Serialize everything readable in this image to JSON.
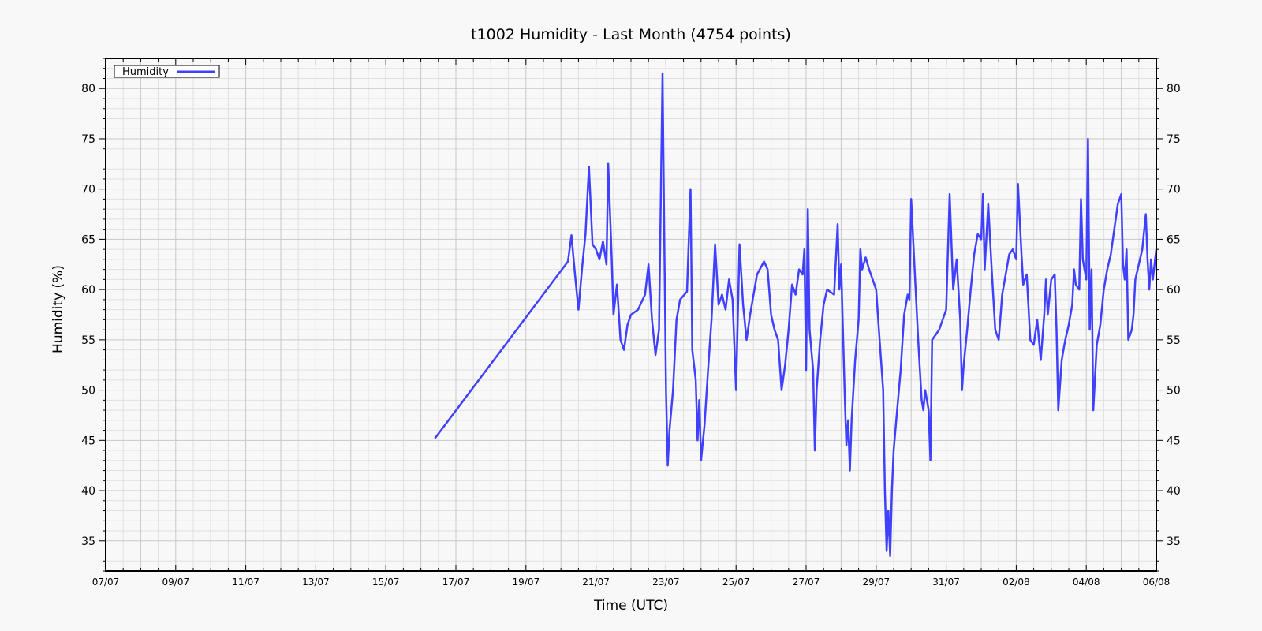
{
  "chart_data": {
    "type": "line",
    "title": "t1002 Humidity - Last Month (4754 points)",
    "xlabel": "Time (UTC)",
    "ylabel": "Humidity (%)",
    "x_ticks": [
      "07/07",
      "09/07",
      "11/07",
      "13/07",
      "15/07",
      "17/07",
      "19/07",
      "21/07",
      "23/07",
      "25/07",
      "27/07",
      "29/07",
      "31/07",
      "02/08",
      "04/08",
      "06/08"
    ],
    "y_ticks": [
      35,
      40,
      45,
      50,
      55,
      60,
      65,
      70,
      75,
      80
    ],
    "xlim": [
      0,
      30
    ],
    "ylim": [
      32,
      83
    ],
    "grid": true,
    "legend_position": "top-left",
    "series": [
      {
        "name": "Humidity",
        "color": "#4040ff",
        "x_unit": "days since 07/07",
        "points": [
          [
            9.4,
            45.2
          ],
          [
            13.2,
            62.8
          ],
          [
            13.3,
            65.4
          ],
          [
            13.4,
            61.5
          ],
          [
            13.5,
            58.0
          ],
          [
            13.6,
            62.0
          ],
          [
            13.7,
            65.5
          ],
          [
            13.8,
            72.2
          ],
          [
            13.9,
            64.5
          ],
          [
            14.0,
            64.0
          ],
          [
            14.1,
            63.0
          ],
          [
            14.2,
            64.8
          ],
          [
            14.3,
            62.5
          ],
          [
            14.35,
            72.5
          ],
          [
            14.45,
            63.0
          ],
          [
            14.5,
            57.5
          ],
          [
            14.6,
            60.5
          ],
          [
            14.7,
            55.0
          ],
          [
            14.8,
            54.0
          ],
          [
            14.9,
            56.5
          ],
          [
            15.0,
            57.5
          ],
          [
            15.2,
            58.0
          ],
          [
            15.4,
            59.5
          ],
          [
            15.5,
            62.5
          ],
          [
            15.6,
            57.0
          ],
          [
            15.7,
            53.5
          ],
          [
            15.8,
            56.0
          ],
          [
            15.9,
            81.5
          ],
          [
            15.95,
            65.0
          ],
          [
            16.0,
            50.0
          ],
          [
            16.05,
            42.5
          ],
          [
            16.1,
            46.0
          ],
          [
            16.2,
            50.0
          ],
          [
            16.3,
            57.0
          ],
          [
            16.4,
            59.0
          ],
          [
            16.6,
            59.8
          ],
          [
            16.7,
            70.0
          ],
          [
            16.75,
            54.0
          ],
          [
            16.85,
            51.0
          ],
          [
            16.9,
            45.0
          ],
          [
            16.95,
            49.0
          ],
          [
            17.0,
            43.0
          ],
          [
            17.1,
            46.5
          ],
          [
            17.2,
            52.0
          ],
          [
            17.3,
            57.0
          ],
          [
            17.4,
            64.5
          ],
          [
            17.5,
            58.5
          ],
          [
            17.6,
            59.5
          ],
          [
            17.7,
            58.0
          ],
          [
            17.8,
            61.0
          ],
          [
            17.9,
            59.0
          ],
          [
            18.0,
            50.0
          ],
          [
            18.1,
            64.5
          ],
          [
            18.2,
            58.5
          ],
          [
            18.3,
            55.0
          ],
          [
            18.4,
            57.5
          ],
          [
            18.6,
            61.5
          ],
          [
            18.8,
            62.8
          ],
          [
            18.9,
            62.0
          ],
          [
            19.0,
            57.5
          ],
          [
            19.1,
            56.0
          ],
          [
            19.2,
            55.0
          ],
          [
            19.3,
            50.0
          ],
          [
            19.4,
            52.5
          ],
          [
            19.5,
            56.0
          ],
          [
            19.6,
            60.5
          ],
          [
            19.7,
            59.5
          ],
          [
            19.8,
            62.0
          ],
          [
            19.9,
            61.5
          ],
          [
            19.95,
            64.0
          ],
          [
            20.0,
            52.0
          ],
          [
            20.05,
            68.0
          ],
          [
            20.1,
            56.0
          ],
          [
            20.2,
            52.0
          ],
          [
            20.25,
            44.0
          ],
          [
            20.3,
            50.0
          ],
          [
            20.4,
            55.0
          ],
          [
            20.5,
            58.5
          ],
          [
            20.6,
            60.0
          ],
          [
            20.8,
            59.5
          ],
          [
            20.9,
            66.5
          ],
          [
            20.95,
            60.0
          ],
          [
            21.0,
            62.5
          ],
          [
            21.1,
            50.0
          ],
          [
            21.15,
            44.5
          ],
          [
            21.2,
            47.0
          ],
          [
            21.25,
            42.0
          ],
          [
            21.3,
            47.0
          ],
          [
            21.4,
            53.0
          ],
          [
            21.5,
            57.0
          ],
          [
            21.55,
            64.0
          ],
          [
            21.6,
            62.0
          ],
          [
            21.7,
            63.2
          ],
          [
            21.8,
            62.0
          ],
          [
            21.9,
            61.0
          ],
          [
            22.0,
            60.0
          ],
          [
            22.1,
            55.0
          ],
          [
            22.2,
            50.0
          ],
          [
            22.25,
            40.0
          ],
          [
            22.3,
            34.0
          ],
          [
            22.35,
            38.0
          ],
          [
            22.4,
            33.5
          ],
          [
            22.45,
            40.0
          ],
          [
            22.5,
            44.0
          ],
          [
            22.6,
            48.0
          ],
          [
            22.7,
            52.0
          ],
          [
            22.8,
            57.5
          ],
          [
            22.9,
            59.5
          ],
          [
            22.95,
            59.0
          ],
          [
            23.0,
            69.0
          ],
          [
            23.1,
            62.0
          ],
          [
            23.2,
            55.0
          ],
          [
            23.3,
            49.0
          ],
          [
            23.35,
            48.0
          ],
          [
            23.4,
            50.0
          ],
          [
            23.5,
            48.0
          ],
          [
            23.55,
            43.0
          ],
          [
            23.6,
            55.0
          ],
          [
            23.8,
            56.0
          ],
          [
            24.0,
            58.0
          ],
          [
            24.1,
            69.5
          ],
          [
            24.2,
            60.0
          ],
          [
            24.3,
            63.0
          ],
          [
            24.4,
            57.0
          ],
          [
            24.45,
            50.0
          ],
          [
            24.5,
            52.5
          ],
          [
            24.6,
            56.0
          ],
          [
            24.7,
            60.0
          ],
          [
            24.8,
            63.5
          ],
          [
            24.9,
            65.5
          ],
          [
            25.0,
            65.0
          ],
          [
            25.05,
            69.5
          ],
          [
            25.1,
            62.0
          ],
          [
            25.2,
            68.5
          ],
          [
            25.3,
            62.0
          ],
          [
            25.4,
            56.0
          ],
          [
            25.5,
            55.0
          ],
          [
            25.6,
            59.5
          ],
          [
            25.8,
            63.5
          ],
          [
            25.9,
            64.0
          ],
          [
            26.0,
            63.0
          ],
          [
            26.05,
            70.5
          ],
          [
            26.15,
            63.5
          ],
          [
            26.2,
            60.5
          ],
          [
            26.3,
            61.5
          ],
          [
            26.4,
            55.0
          ],
          [
            26.5,
            54.5
          ],
          [
            26.6,
            57.0
          ],
          [
            26.7,
            53.0
          ],
          [
            26.8,
            57.5
          ],
          [
            26.85,
            61.0
          ],
          [
            26.9,
            57.5
          ],
          [
            27.0,
            61.0
          ],
          [
            27.1,
            61.5
          ],
          [
            27.15,
            56.0
          ],
          [
            27.2,
            48.0
          ],
          [
            27.3,
            53.0
          ],
          [
            27.35,
            54.0
          ],
          [
            27.4,
            55.0
          ],
          [
            27.5,
            56.5
          ],
          [
            27.6,
            58.5
          ],
          [
            27.65,
            62.0
          ],
          [
            27.7,
            60.5
          ],
          [
            27.8,
            60.0
          ],
          [
            27.85,
            69.0
          ],
          [
            27.9,
            63.0
          ],
          [
            28.0,
            61.0
          ],
          [
            28.05,
            75.0
          ],
          [
            28.1,
            56.0
          ],
          [
            28.15,
            62.0
          ],
          [
            28.2,
            48.0
          ],
          [
            28.3,
            54.5
          ],
          [
            28.4,
            56.5
          ],
          [
            28.5,
            60.0
          ],
          [
            28.6,
            62.0
          ],
          [
            28.7,
            63.5
          ],
          [
            28.8,
            66.0
          ],
          [
            28.9,
            68.5
          ],
          [
            29.0,
            69.5
          ],
          [
            29.05,
            62.5
          ],
          [
            29.1,
            61.0
          ],
          [
            29.15,
            64.0
          ],
          [
            29.2,
            55.0
          ],
          [
            29.3,
            56.0
          ],
          [
            29.35,
            57.5
          ],
          [
            29.4,
            61.0
          ],
          [
            29.5,
            62.5
          ],
          [
            29.6,
            64.0
          ],
          [
            29.7,
            67.5
          ],
          [
            29.75,
            63.0
          ],
          [
            29.8,
            60.0
          ],
          [
            29.85,
            63.0
          ],
          [
            29.9,
            61.0
          ],
          [
            30.0,
            64.0
          ]
        ]
      }
    ]
  }
}
